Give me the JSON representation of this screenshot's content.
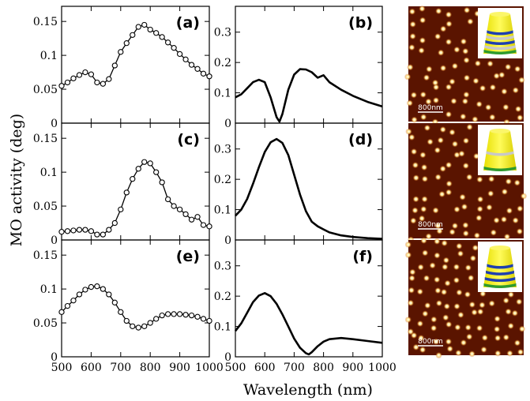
{
  "xlabel": "Wavelength (nm)",
  "ylabel": "MO activity (deg)",
  "chart_data": [
    {
      "panel": "(a)",
      "type": "line",
      "marker": "circle",
      "xlim": [
        500,
        1000
      ],
      "ylim": [
        0,
        0.17
      ],
      "xticks": [
        "500",
        "600",
        "700",
        "800",
        "900",
        "1000"
      ],
      "yticks": [
        "0",
        "0.05",
        "0.1",
        "0.15"
      ],
      "x": [
        500,
        520,
        540,
        560,
        580,
        600,
        620,
        640,
        660,
        680,
        700,
        720,
        740,
        760,
        780,
        800,
        820,
        840,
        860,
        880,
        900,
        920,
        940,
        960,
        980,
        1000
      ],
      "y": [
        0.055,
        0.06,
        0.066,
        0.071,
        0.075,
        0.072,
        0.06,
        0.058,
        0.065,
        0.085,
        0.105,
        0.118,
        0.13,
        0.142,
        0.145,
        0.138,
        0.133,
        0.127,
        0.119,
        0.111,
        0.102,
        0.094,
        0.086,
        0.08,
        0.073,
        0.069
      ]
    },
    {
      "panel": "(b)",
      "type": "line",
      "xlim": [
        500,
        1000
      ],
      "ylim": [
        0,
        0.38
      ],
      "xticks": [
        "500",
        "600",
        "700",
        "800",
        "900",
        "1000"
      ],
      "yticks": [
        "0",
        "0.1",
        "0.2",
        "0.3"
      ],
      "x": [
        500,
        520,
        540,
        560,
        580,
        600,
        620,
        640,
        650,
        660,
        680,
        700,
        720,
        740,
        760,
        780,
        800,
        820,
        860,
        900,
        950,
        1000
      ],
      "y": [
        0.085,
        0.095,
        0.115,
        0.135,
        0.143,
        0.135,
        0.085,
        0.02,
        0.005,
        0.03,
        0.11,
        0.16,
        0.178,
        0.177,
        0.168,
        0.15,
        0.158,
        0.135,
        0.11,
        0.09,
        0.07,
        0.055
      ]
    },
    {
      "panel": "(c)",
      "type": "line",
      "marker": "circle",
      "xlim": [
        500,
        1000
      ],
      "ylim": [
        0,
        0.17
      ],
      "xticks": [
        "500",
        "600",
        "700",
        "800",
        "900",
        "1000"
      ],
      "yticks": [
        "0",
        "0.05",
        "0.1",
        "0.15"
      ],
      "x": [
        500,
        520,
        540,
        560,
        580,
        600,
        620,
        640,
        660,
        680,
        700,
        720,
        740,
        760,
        780,
        800,
        820,
        840,
        860,
        880,
        900,
        920,
        940,
        960,
        980,
        1000
      ],
      "y": [
        0.012,
        0.013,
        0.014,
        0.015,
        0.015,
        0.013,
        0.008,
        0.008,
        0.015,
        0.025,
        0.045,
        0.07,
        0.09,
        0.105,
        0.115,
        0.113,
        0.1,
        0.085,
        0.06,
        0.05,
        0.045,
        0.038,
        0.03,
        0.034,
        0.022,
        0.02
      ]
    },
    {
      "panel": "(d)",
      "type": "line",
      "xlim": [
        500,
        1000
      ],
      "ylim": [
        0,
        0.38
      ],
      "xticks": [
        "500",
        "600",
        "700",
        "800",
        "900",
        "1000"
      ],
      "yticks": [
        "0",
        "0.1",
        "0.2",
        "0.3"
      ],
      "x": [
        500,
        520,
        540,
        560,
        580,
        600,
        620,
        640,
        660,
        680,
        700,
        720,
        740,
        760,
        780,
        800,
        820,
        860,
        900,
        950,
        1000
      ],
      "y": [
        0.08,
        0.1,
        0.135,
        0.185,
        0.24,
        0.29,
        0.322,
        0.333,
        0.32,
        0.28,
        0.215,
        0.15,
        0.095,
        0.06,
        0.045,
        0.035,
        0.025,
        0.015,
        0.01,
        0.006,
        0.004
      ]
    },
    {
      "panel": "(e)",
      "type": "line",
      "marker": "circle",
      "xlim": [
        500,
        1000
      ],
      "ylim": [
        0,
        0.17
      ],
      "xticks": [
        "500",
        "600",
        "700",
        "800",
        "900",
        "1000"
      ],
      "yticks": [
        "0",
        "0.05",
        "0.1",
        "0.15"
      ],
      "x": [
        500,
        520,
        540,
        560,
        580,
        600,
        620,
        640,
        660,
        680,
        700,
        720,
        740,
        760,
        780,
        800,
        820,
        840,
        860,
        880,
        900,
        920,
        940,
        960,
        980,
        1000
      ],
      "y": [
        0.066,
        0.075,
        0.083,
        0.092,
        0.099,
        0.103,
        0.104,
        0.1,
        0.092,
        0.08,
        0.066,
        0.053,
        0.045,
        0.043,
        0.045,
        0.05,
        0.056,
        0.061,
        0.063,
        0.063,
        0.063,
        0.062,
        0.061,
        0.059,
        0.056,
        0.053
      ]
    },
    {
      "panel": "(f)",
      "type": "line",
      "xlim": [
        500,
        1000
      ],
      "ylim": [
        0,
        0.38
      ],
      "xticks": [
        "500",
        "600",
        "700",
        "800",
        "900",
        "1000"
      ],
      "yticks": [
        "0",
        "0.1",
        "0.2",
        "0.3"
      ],
      "x": [
        500,
        520,
        540,
        560,
        580,
        600,
        620,
        640,
        660,
        680,
        700,
        720,
        740,
        750,
        760,
        780,
        800,
        820,
        860,
        900,
        950,
        1000
      ],
      "y": [
        0.085,
        0.11,
        0.145,
        0.18,
        0.202,
        0.21,
        0.2,
        0.175,
        0.14,
        0.1,
        0.06,
        0.03,
        0.012,
        0.008,
        0.015,
        0.035,
        0.05,
        0.058,
        0.062,
        0.058,
        0.052,
        0.046
      ]
    }
  ],
  "images": [
    {
      "name": "afm-image-top",
      "scalebar": "800nm",
      "inset_bands": [
        "blue",
        "gray",
        "blue",
        "gray",
        "green"
      ]
    },
    {
      "name": "afm-image-middle",
      "scalebar": "800nm",
      "inset_bands": [
        "gray",
        "green"
      ]
    },
    {
      "name": "afm-image-bottom",
      "scalebar": "800nm",
      "inset_bands": [
        "blue",
        "blue",
        "blue",
        "green"
      ]
    }
  ],
  "colors": {
    "line": "#000000",
    "afm_dark": "#5a1400",
    "afm_spot": "#ffe9b0",
    "cone_yellow": "#f7f000",
    "band_blue": "#1e3fb0",
    "band_gray": "#c8c8c8",
    "band_green": "#2e9a2e"
  }
}
